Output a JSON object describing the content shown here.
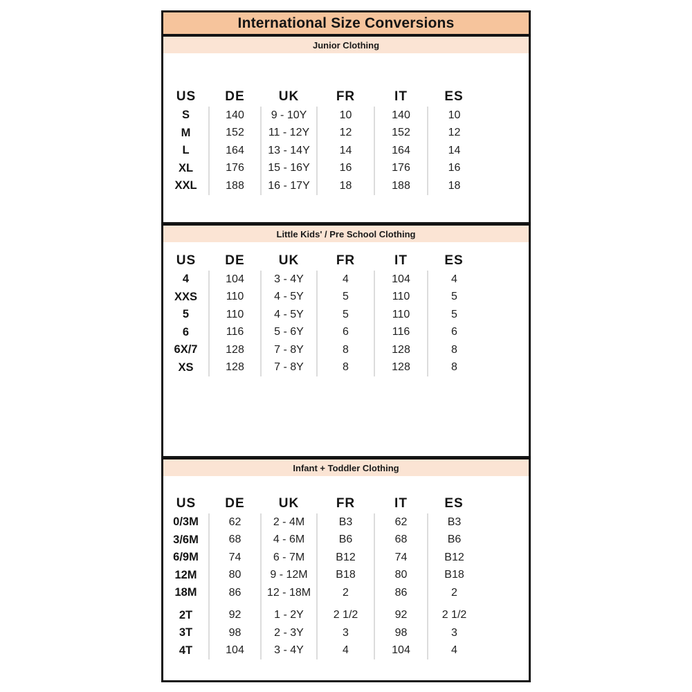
{
  "title": "International Size Conversions",
  "columns": [
    "US",
    "DE",
    "UK",
    "FR",
    "IT",
    "ES"
  ],
  "colors": {
    "title_bg": "#f6c49c",
    "section_header_bg": "#fbe4d4",
    "border": "#141414",
    "column_divider": "#dcdcdc",
    "text": "#1a1a1a"
  },
  "sections": [
    {
      "label": "Junior Clothing",
      "rows": [
        [
          "S",
          "140",
          "9 - 10Y",
          "10",
          "140",
          "10"
        ],
        [
          "M",
          "152",
          "11 - 12Y",
          "12",
          "152",
          "12"
        ],
        [
          "L",
          "164",
          "13 - 14Y",
          "14",
          "164",
          "14"
        ],
        [
          "XL",
          "176",
          "15 - 16Y",
          "16",
          "176",
          "16"
        ],
        [
          "XXL",
          "188",
          "16 - 17Y",
          "18",
          "188",
          "18"
        ]
      ]
    },
    {
      "label": "Little Kids' / Pre School Clothing",
      "rows": [
        [
          "4",
          "104",
          "3 - 4Y",
          "4",
          "104",
          "4"
        ],
        [
          "XXS",
          "110",
          "4 - 5Y",
          "5",
          "110",
          "5"
        ],
        [
          "5",
          "110",
          "4 - 5Y",
          "5",
          "110",
          "5"
        ],
        [
          "6",
          "116",
          "5 - 6Y",
          "6",
          "116",
          "6"
        ],
        [
          "6X/7",
          "128",
          "7 - 8Y",
          "8",
          "128",
          "8"
        ],
        [
          "XS",
          "128",
          "7 - 8Y",
          "8",
          "128",
          "8"
        ]
      ]
    },
    {
      "label": "Infant + Toddler Clothing",
      "rows": [
        [
          "0/3M",
          "62",
          "2 - 4M",
          "B3",
          "62",
          "B3"
        ],
        [
          "3/6M",
          "68",
          "4 - 6M",
          "B6",
          "68",
          "B6"
        ],
        [
          "6/9M",
          "74",
          "6 - 7M",
          "B12",
          "74",
          "B12"
        ],
        [
          "12M",
          "80",
          "9 - 12M",
          "B18",
          "80",
          "B18"
        ],
        [
          "18M",
          "86",
          "12 - 18M",
          "2",
          "86",
          "2"
        ],
        [
          "2T",
          "92",
          "1 - 2Y",
          "2 1/2",
          "92",
          "2 1/2"
        ],
        [
          "3T",
          "98",
          "2 - 3Y",
          "3",
          "98",
          "3"
        ],
        [
          "4T",
          "104",
          "3 - 4Y",
          "4",
          "104",
          "4"
        ]
      ]
    }
  ]
}
